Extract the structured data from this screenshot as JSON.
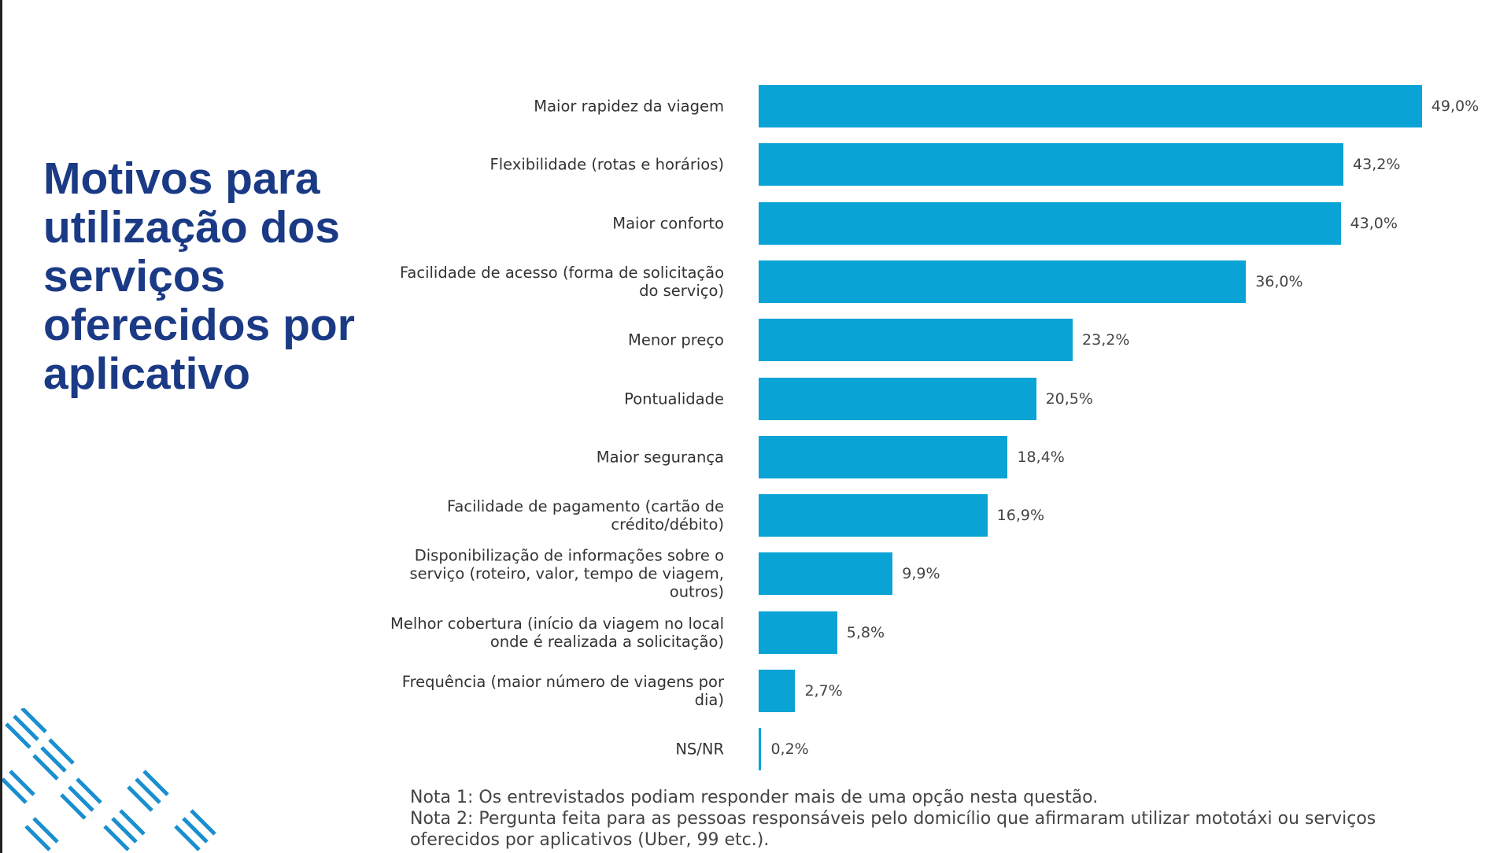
{
  "chart_data": {
    "type": "barh",
    "title": "Motivos para utilização dos serviços oferecidos por aplicativo",
    "categories": [
      "Maior rapidez da viagem",
      "Flexibilidade (rotas e horários)",
      "Maior conforto",
      "Facilidade de acesso (forma de solicitação do serviço)",
      "Menor preço",
      "Pontualidade",
      "Maior segurança",
      "Facilidade de pagamento (cartão de crédito/débito)",
      "Disponibilização de informações sobre o serviço (roteiro, valor, tempo de viagem, outros)",
      "Melhor cobertura (início da viagem no local onde é realizada a solicitação)",
      "Frequência (maior número de viagens por dia)",
      "NS/NR"
    ],
    "values": [
      49.0,
      43.2,
      43.0,
      36.0,
      23.2,
      20.5,
      18.4,
      16.9,
      9.9,
      5.8,
      2.7,
      0.2
    ],
    "value_labels": [
      "49,0%",
      "43,2%",
      "43,0%",
      "36,0%",
      "23,2%",
      "20,5%",
      "18,4%",
      "16,9%",
      "9,9%",
      "5,8%",
      "2,7%",
      "0,2%"
    ],
    "color": "#0aa3d5",
    "notes": [
      "Nota 1: Os entrevistados podiam responder mais de uma opção nesta questão.",
      "Nota 2: Pergunta feita para as pessoas responsáveis pelo domicílio que afirmaram utilizar mototáxi ou serviços oferecidos por aplicativos (Uber, 99 etc.)."
    ]
  }
}
